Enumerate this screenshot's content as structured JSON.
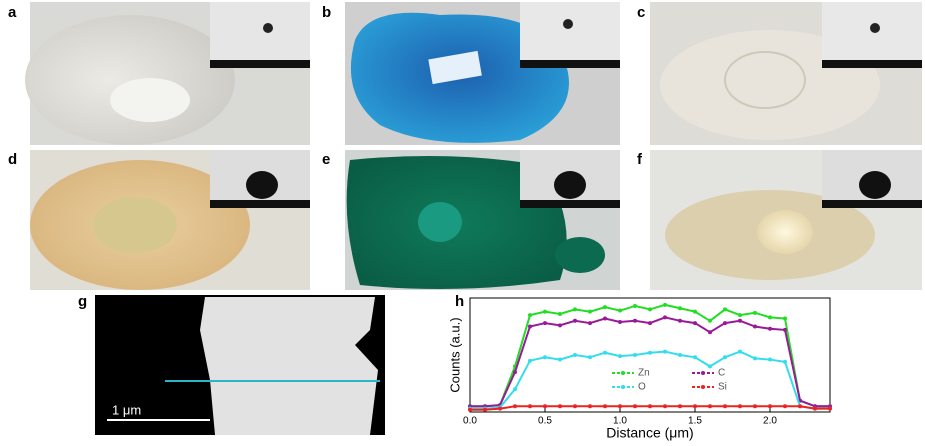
{
  "panel_labels": [
    "a",
    "b",
    "c",
    "d",
    "e",
    "f",
    "g",
    "h"
  ],
  "scale_bar": "1 μm",
  "chart_data": {
    "type": "line",
    "x_label": "Distance (μm)",
    "y_label": "Counts (a.u.)",
    "x": [
      0.0,
      0.1,
      0.2,
      0.3,
      0.4,
      0.5,
      0.6,
      0.7,
      0.8,
      0.9,
      1.0,
      1.1,
      1.2,
      1.3,
      1.4,
      1.5,
      1.6,
      1.7,
      1.8,
      1.9,
      2.0,
      2.1,
      2.2,
      2.3,
      2.4
    ],
    "series": [
      {
        "name": "Zn",
        "color": "#22dd22",
        "values": [
          5,
          5,
          6,
          40,
          85,
          88,
          86,
          90,
          88,
          92,
          89,
          93,
          90,
          94,
          91,
          88,
          80,
          90,
          85,
          87,
          83,
          82,
          10,
          5,
          5
        ]
      },
      {
        "name": "C",
        "color": "#991a99",
        "values": [
          5,
          5,
          6,
          35,
          75,
          78,
          76,
          80,
          78,
          82,
          79,
          80,
          78,
          83,
          80,
          78,
          70,
          78,
          80,
          75,
          73,
          72,
          10,
          5,
          5
        ]
      },
      {
        "name": "O",
        "color": "#33ddee",
        "values": [
          3,
          3,
          4,
          20,
          45,
          48,
          46,
          50,
          48,
          52,
          49,
          50,
          52,
          53,
          50,
          48,
          40,
          48,
          53,
          47,
          46,
          44,
          5,
          3,
          3
        ]
      },
      {
        "name": "Si",
        "color": "#ee2222",
        "values": [
          2,
          2,
          3,
          5,
          5,
          5,
          5,
          5,
          5,
          5,
          5,
          5,
          5,
          5,
          5,
          5,
          5,
          5,
          5,
          5,
          5,
          5,
          5,
          3,
          3
        ]
      }
    ],
    "xlim": [
      0,
      2.4
    ],
    "xticks": [
      {
        "value": 0,
        "label": "0.0"
      },
      0.5,
      {
        "value": 1,
        "label": "1.0"
      },
      1.5,
      {
        "value": 2,
        "label": "2.0"
      }
    ],
    "ylim": [
      0,
      100
    ]
  }
}
